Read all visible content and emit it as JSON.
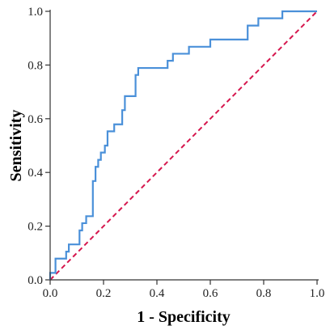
{
  "chart_data": {
    "type": "line",
    "title": "",
    "xlabel": "1 - Specificity",
    "ylabel": "Sensitivity",
    "xlim": [
      0.0,
      1.0
    ],
    "ylim": [
      0.0,
      1.0
    ],
    "grid": false,
    "x_ticks": [
      "0.0",
      "0.2",
      "0.4",
      "0.6",
      "0.8",
      "1.0"
    ],
    "y_ticks": [
      "0.0",
      "0.2",
      "0.4",
      "0.6",
      "0.8",
      "1.0"
    ],
    "series": [
      {
        "color": "#4a90d9",
        "step": true,
        "points": [
          [
            0.0,
            0.0
          ],
          [
            0.0,
            0.026
          ],
          [
            0.02,
            0.026
          ],
          [
            0.02,
            0.079
          ],
          [
            0.06,
            0.079
          ],
          [
            0.06,
            0.105
          ],
          [
            0.07,
            0.105
          ],
          [
            0.07,
            0.132
          ],
          [
            0.11,
            0.132
          ],
          [
            0.11,
            0.184
          ],
          [
            0.12,
            0.184
          ],
          [
            0.12,
            0.211
          ],
          [
            0.135,
            0.211
          ],
          [
            0.135,
            0.237
          ],
          [
            0.16,
            0.237
          ],
          [
            0.16,
            0.368
          ],
          [
            0.17,
            0.368
          ],
          [
            0.17,
            0.421
          ],
          [
            0.18,
            0.421
          ],
          [
            0.18,
            0.447
          ],
          [
            0.19,
            0.447
          ],
          [
            0.19,
            0.474
          ],
          [
            0.205,
            0.474
          ],
          [
            0.205,
            0.5
          ],
          [
            0.215,
            0.5
          ],
          [
            0.215,
            0.553
          ],
          [
            0.24,
            0.553
          ],
          [
            0.24,
            0.579
          ],
          [
            0.27,
            0.579
          ],
          [
            0.27,
            0.632
          ],
          [
            0.28,
            0.632
          ],
          [
            0.28,
            0.684
          ],
          [
            0.32,
            0.684
          ],
          [
            0.32,
            0.763
          ],
          [
            0.33,
            0.763
          ],
          [
            0.33,
            0.789
          ],
          [
            0.44,
            0.789
          ],
          [
            0.44,
            0.816
          ],
          [
            0.46,
            0.816
          ],
          [
            0.46,
            0.842
          ],
          [
            0.52,
            0.842
          ],
          [
            0.52,
            0.868
          ],
          [
            0.6,
            0.868
          ],
          [
            0.6,
            0.895
          ],
          [
            0.74,
            0.895
          ],
          [
            0.74,
            0.947
          ],
          [
            0.78,
            0.947
          ],
          [
            0.78,
            0.974
          ],
          [
            0.87,
            0.974
          ],
          [
            0.87,
            1.0
          ],
          [
            1.0,
            1.0
          ]
        ]
      },
      {
        "color": "#d6174e",
        "dashed": true,
        "points": [
          [
            0.0,
            0.0
          ],
          [
            1.0,
            1.0
          ]
        ]
      }
    ]
  }
}
